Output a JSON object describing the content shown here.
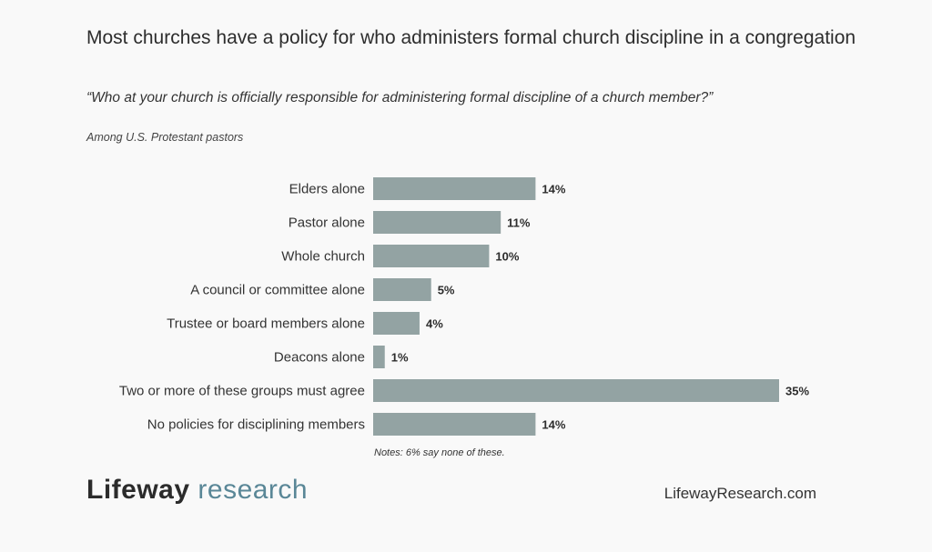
{
  "title": "Most churches have a policy for who administers formal church discipline in a congregation",
  "question": "“Who at your church is officially responsible for administering formal discipline of a church member?”",
  "audience": "Among U.S. Protestant pastors",
  "note": "Notes: 6% say none of these.",
  "brand": {
    "logo_word1": "Lifeway",
    "logo_word2": "research",
    "website": "LifewayResearch.com"
  },
  "colors": {
    "bar": "#93a3a3",
    "logo_accent": "#5a8797"
  },
  "chart_data": {
    "type": "bar",
    "orientation": "horizontal",
    "categories": [
      "Elders alone",
      "Pastor alone",
      "Whole church",
      "A council or committee alone",
      "Trustee or board members alone",
      "Deacons alone",
      "Two or more of these groups must agree",
      "No policies for disciplining members"
    ],
    "values": [
      14,
      11,
      10,
      5,
      4,
      1,
      35,
      14
    ],
    "value_labels": [
      "14%",
      "11%",
      "10%",
      "5%",
      "4%",
      "1%",
      "35%",
      "14%"
    ],
    "unit": "%",
    "xlim": [
      0,
      35
    ],
    "grid": false,
    "legend": "none"
  }
}
